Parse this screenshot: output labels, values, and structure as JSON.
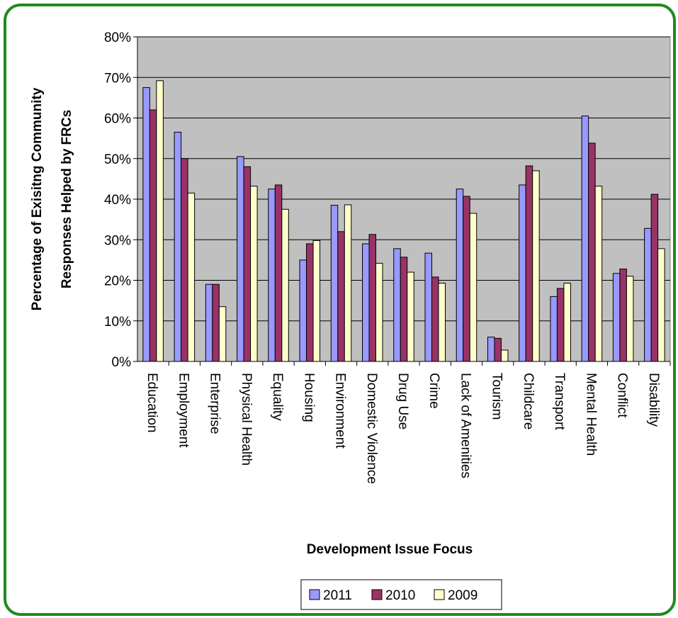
{
  "chart_data": {
    "type": "bar",
    "title": "",
    "xlabel": "Development Issue Focus",
    "ylabel_line1": "Percentage of Exisitng Community",
    "ylabel_line2": "Responses Helped by FRCs",
    "ylim": [
      0,
      80
    ],
    "yticks": [
      "0%",
      "10%",
      "20%",
      "30%",
      "40%",
      "50%",
      "60%",
      "70%",
      "80%"
    ],
    "ytick_values": [
      0,
      10,
      20,
      30,
      40,
      50,
      60,
      70,
      80
    ],
    "grid": true,
    "legend_position": "bottom",
    "categories": [
      "Education",
      "Employment",
      "Enterprise",
      "Physical Health",
      "Equality",
      "Housing",
      "Environment",
      "Domestic Violence",
      "Drug Use",
      "Crime",
      "Lack of Amenities",
      "Tourism",
      "Childcare",
      "Transport",
      "Mental Health",
      "Conflict",
      "Disability"
    ],
    "series": [
      {
        "name": "2011",
        "color": "#9999ff",
        "values": [
          67.5,
          56.5,
          19,
          50.5,
          42.5,
          25,
          38.5,
          29,
          27.8,
          26.7,
          42.5,
          6,
          43.5,
          16,
          60.5,
          21.7,
          32.8
        ]
      },
      {
        "name": "2010",
        "color": "#993366",
        "values": [
          62,
          50,
          19,
          48,
          43.5,
          29,
          32,
          31.3,
          25.7,
          20.8,
          40.7,
          5.7,
          48.2,
          18,
          53.8,
          22.8,
          41.2
        ]
      },
      {
        "name": "2009",
        "color": "#ffffcc",
        "values": [
          69.2,
          41.5,
          13.5,
          43.2,
          37.5,
          29.8,
          38.6,
          24.2,
          22,
          19.3,
          36.5,
          2.8,
          47,
          19.3,
          43.2,
          21,
          27.8
        ]
      }
    ]
  }
}
